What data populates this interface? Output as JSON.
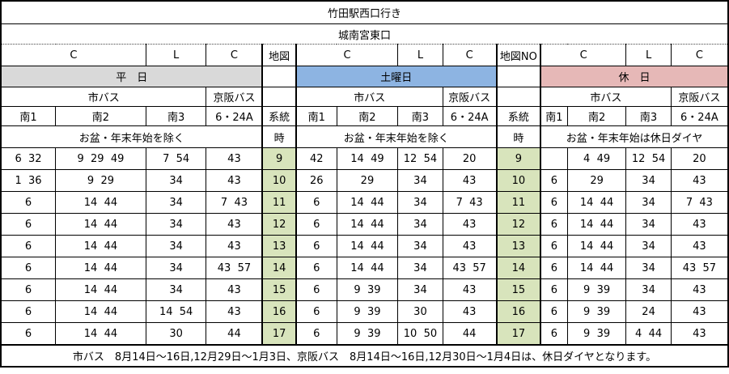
{
  "header": {
    "title": "竹田駅西口行き",
    "stop": "城南宮東口",
    "map_col_left": "地図",
    "map_col_right": "地図NO",
    "keito_label": "系統",
    "hour_label": "時"
  },
  "sections": [
    {
      "id": "weekday",
      "label": "平　日",
      "classes": [
        "C",
        "L",
        "C"
      ],
      "operator_city": "市バス",
      "operator_keihan": "京阪バス",
      "routes": [
        "南1",
        "南2",
        "南3",
        "6・24A"
      ],
      "note": "お盆・年末年始を除く"
    },
    {
      "id": "saturday",
      "label": "土曜日",
      "classes": [
        "C",
        "L",
        "C"
      ],
      "operator_city": "市バス",
      "operator_keihan": "京阪バス",
      "routes": [
        "南1",
        "南2",
        "南3",
        "6・24A"
      ],
      "note": "お盆・年末年始を除く"
    },
    {
      "id": "holiday",
      "label": "休　日",
      "classes": [
        "C",
        "L",
        "C"
      ],
      "operator_city": "市バス",
      "operator_keihan": "京阪バス",
      "routes": [
        "南1",
        "南2",
        "南3",
        "6・24A"
      ],
      "note": "お盆・年末年始は休日ダイヤ"
    }
  ],
  "rows": [
    {
      "hour": "9",
      "weekday": [
        "6  32",
        "9  29  49",
        "7  54",
        "43"
      ],
      "saturday": [
        "42",
        "14  49",
        "12  54",
        "20"
      ],
      "holiday": [
        "",
        "4  49",
        "12  54",
        "20"
      ]
    },
    {
      "hour": "10",
      "weekday": [
        "1  36",
        "9  29",
        "34",
        "43"
      ],
      "saturday": [
        "26",
        "29",
        "34",
        "43"
      ],
      "holiday": [
        "6",
        "29",
        "34",
        "43"
      ]
    },
    {
      "hour": "11",
      "weekday": [
        "6",
        "14  44",
        "34",
        "7  43"
      ],
      "saturday": [
        "6",
        "14  44",
        "34",
        "7  43"
      ],
      "holiday": [
        "6",
        "14  44",
        "34",
        "7  43"
      ]
    },
    {
      "hour": "12",
      "weekday": [
        "6",
        "14  44",
        "34",
        "43"
      ],
      "saturday": [
        "6",
        "14  44",
        "34",
        "43"
      ],
      "holiday": [
        "6",
        "14  44",
        "34",
        "43"
      ]
    },
    {
      "hour": "13",
      "weekday": [
        "6",
        "14  44",
        "34",
        "43"
      ],
      "saturday": [
        "6",
        "14  44",
        "34",
        "43"
      ],
      "holiday": [
        "6",
        "14  44",
        "34",
        "43"
      ]
    },
    {
      "hour": "14",
      "weekday": [
        "6",
        "14  44",
        "34",
        "43  57"
      ],
      "saturday": [
        "6",
        "14  44",
        "34",
        "43  57"
      ],
      "holiday": [
        "6",
        "14  44",
        "34",
        "43  57"
      ]
    },
    {
      "hour": "15",
      "weekday": [
        "6",
        "14  44",
        "34",
        "43"
      ],
      "saturday": [
        "6",
        "9  39",
        "34",
        "43"
      ],
      "holiday": [
        "6",
        "9  39",
        "34",
        "43"
      ]
    },
    {
      "hour": "16",
      "weekday": [
        "6",
        "14  44",
        "14  54",
        "43"
      ],
      "saturday": [
        "6",
        "9  39",
        "30",
        "43"
      ],
      "holiday": [
        "6",
        "9  39",
        "24",
        "43"
      ]
    },
    {
      "hour": "17",
      "weekday": [
        "6",
        "14  44",
        "30",
        "44"
      ],
      "saturday": [
        "6",
        "9  39",
        "10  50",
        "44"
      ],
      "holiday": [
        "6",
        "9  39",
        "4  44",
        "43"
      ]
    }
  ],
  "footer": "市バス　8月14日～16日,12月29日～1月3日、京阪バス　8月14日～16日,12月30日～1月4日は、休日ダイヤとなります。",
  "colors": {
    "weekday": "#d9d9d9",
    "saturday": "#8db4e2",
    "holiday": "#e6b8b7",
    "hour_col": "#d8e4bc",
    "border": "#000000"
  }
}
